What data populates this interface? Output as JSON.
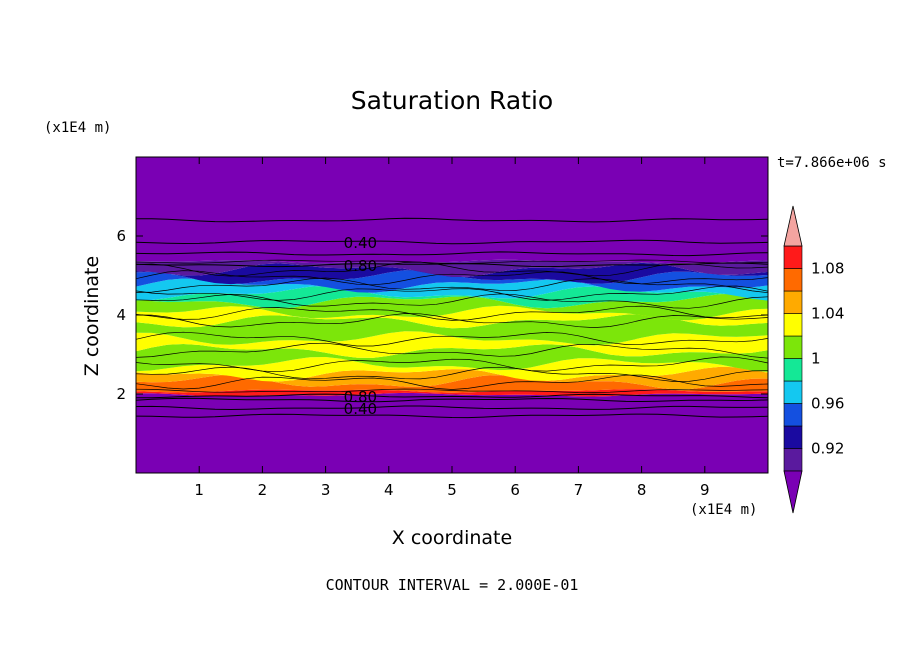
{
  "chart_data": {
    "type": "heatmap",
    "title": "Saturation Ratio",
    "xlabel": "X coordinate",
    "ylabel": "Z coordinate",
    "x_unit": "(x1E4 m)",
    "y_unit": "(x1E4 m)",
    "xlim": [
      0,
      10
    ],
    "ylim": [
      0,
      8
    ],
    "x_ticks": [
      1,
      2,
      3,
      4,
      5,
      6,
      7,
      8,
      9
    ],
    "y_ticks": [
      2,
      4,
      6
    ],
    "timestamp": "t=7.866e+06 s",
    "footer": "CONTOUR INTERVAL = 2.000E-01",
    "colorbar": {
      "levels": [
        0.9,
        0.92,
        0.94,
        0.96,
        0.98,
        1,
        1.02,
        1.04,
        1.06,
        1.08,
        1.1
      ],
      "tick_labels": [
        "0.92",
        "0.96",
        "1",
        "1.04",
        "1.08"
      ],
      "colors": [
        "#5a1a9e",
        "#1a0aa0",
        "#1450e0",
        "#14c8f0",
        "#14e896",
        "#7ce60a",
        "#ffff00",
        "#ffaa00",
        "#ff6a00",
        "#ff1a1a"
      ],
      "over_color": "#f4a4a0",
      "under_color": "#7a00b4"
    },
    "contour_labels": [
      {
        "text": "0.40",
        "x": 3.55,
        "z": 5.85
      },
      {
        "text": "0.80",
        "x": 3.55,
        "z": 5.27
      },
      {
        "text": "0.80",
        "x": 3.55,
        "z": 1.95
      },
      {
        "text": "0.40",
        "x": 3.55,
        "z": 1.65
      }
    ],
    "bands": [
      {
        "z0": 0.0,
        "z1": 1.98,
        "color": "#7a00b4"
      },
      {
        "z0": 1.98,
        "z1": 2.08,
        "color": "#ff1a1a"
      },
      {
        "z0": 2.08,
        "z1": 2.3,
        "color": "#ff6a00"
      },
      {
        "z0": 2.3,
        "z1": 2.5,
        "color": "#ffaa00"
      },
      {
        "z0": 2.5,
        "z1": 2.75,
        "color": "#ffff00"
      },
      {
        "z0": 2.75,
        "z1": 3.1,
        "color": "#7ce60a"
      },
      {
        "z0": 3.1,
        "z1": 3.4,
        "color": "#ffff00"
      },
      {
        "z0": 3.4,
        "z1": 3.85,
        "color": "#7ce60a"
      },
      {
        "z0": 3.85,
        "z1": 4.05,
        "color": "#ffff00"
      },
      {
        "z0": 4.05,
        "z1": 4.35,
        "color": "#7ce60a"
      },
      {
        "z0": 4.35,
        "z1": 4.55,
        "color": "#14e896"
      },
      {
        "z0": 4.55,
        "z1": 4.75,
        "color": "#14c8f0"
      },
      {
        "z0": 4.75,
        "z1": 4.95,
        "color": "#1450e0"
      },
      {
        "z0": 4.95,
        "z1": 5.15,
        "color": "#1a0aa0"
      },
      {
        "z0": 5.15,
        "z1": 5.35,
        "color": "#5a1a9e"
      },
      {
        "z0": 5.35,
        "z1": 8.0,
        "color": "#7a00b4"
      }
    ],
    "contour_lines_z": [
      6.4,
      5.85,
      5.55,
      5.27,
      1.95,
      1.85,
      1.65,
      1.45
    ]
  }
}
